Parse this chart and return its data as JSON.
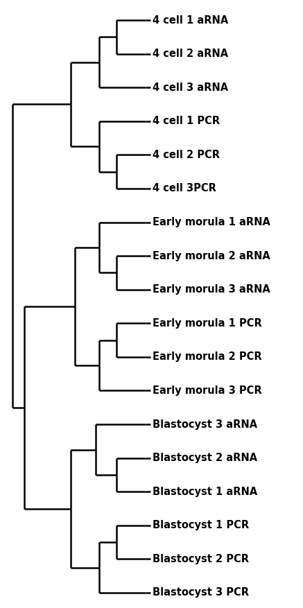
{
  "labels": [
    "4 cell 1 aRNA",
    "4 cell 2 aRNA",
    "4 cell 3 aRNA",
    "4 cell 1 PCR",
    "4 cell 2 PCR",
    "4 cell 3PCR",
    "Early morula 1 aRNA",
    "Early morula 2 aRNA",
    "Early morula 3 aRNA",
    "Early morula 1 PCR",
    "Early morula 2 PCR",
    "Early morula 3 PCR",
    "Blastocyst 3 aRNA",
    "Blastocyst 2 aRNA",
    "Blastocyst 1 aRNA",
    "Blastocyst 1 PCR",
    "Blastocyst 2 PCR",
    "Blastocyst 3 PCR"
  ],
  "label_fontsize": 10.5,
  "label_fontweight": "bold",
  "line_color": "black",
  "line_width": 1.8,
  "background_color": "white",
  "figsize": [
    4.37,
    8.77
  ],
  "dpi": 100
}
